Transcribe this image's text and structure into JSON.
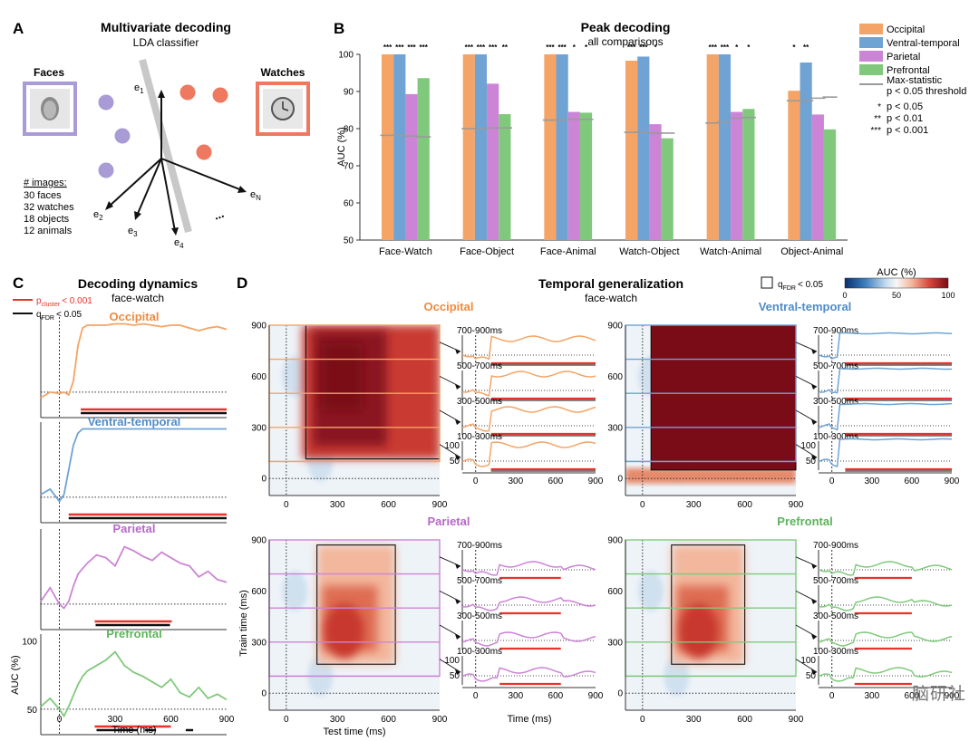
{
  "panel_a": {
    "letter": "A",
    "title": "Multivariate decoding",
    "subtitle": "LDA classifier",
    "left_label": "Faces",
    "right_label": "Watches",
    "axis_labels": [
      "e",
      "e",
      "e",
      "e",
      "e"
    ],
    "axis_subs": [
      "1",
      "2",
      "3",
      "4",
      "N"
    ],
    "ellipsis": "...",
    "images_header": "# images:",
    "images_lines": [
      "30 faces",
      "32 watches",
      "18 objects",
      "12 animals"
    ]
  },
  "panel_b": {
    "letter": "B",
    "title": "Peak decoding",
    "subtitle": "all comparisons",
    "legend": {
      "series": [
        "Occipital",
        "Ventral-temporal",
        "Parietal",
        "Prefrontal"
      ],
      "threshold_label_1": "Max-statistic",
      "threshold_label_2": "p < 0.05 threshold",
      "sig": [
        {
          "stars": "*",
          "label": "p < 0.05"
        },
        {
          "stars": "**",
          "label": "p < 0.01"
        },
        {
          "stars": "***",
          "label": "p < 0.001"
        }
      ]
    }
  },
  "panel_c": {
    "letter": "C",
    "title": "Decoding dynamics",
    "subtitle": "face-watch",
    "legend_red": "p",
    "legend_red_sub": "cluster",
    "legend_red_rest": "< 0.001",
    "legend_black": "q",
    "legend_black_sub": "FDR",
    "legend_black_rest": "< 0.05",
    "region_labels": [
      "Occipital",
      "Ventral-temporal",
      "Parietal",
      "Prefrontal"
    ],
    "y_label": "AUC (%)",
    "y_ticks": [
      "100",
      "50"
    ],
    "x_ticks": [
      "0",
      "300",
      "600",
      "900"
    ],
    "x_label": "Time (ms)"
  },
  "panel_d": {
    "letter": "D",
    "title": "Temporal generalization",
    "subtitle": "face-watch",
    "legend_q": "q",
    "legend_q_sub": "FDR",
    "legend_q_rest": "< 0.05",
    "colorbar_title": "AUC (%)",
    "colorbar_ticks": [
      "0",
      "50",
      "100"
    ],
    "region_labels": [
      "Occipital",
      "Ventral-temporal",
      "Parietal",
      "Prefrontal"
    ],
    "window_labels": [
      "700-900ms",
      "500-700ms",
      "300-500ms",
      "100-300ms"
    ],
    "heat_ticks": [
      "0",
      "300",
      "600",
      "900"
    ],
    "trace_y_ticks": [
      "100",
      "50"
    ],
    "trace_x_ticks": [
      "0",
      "300",
      "600",
      "900"
    ],
    "y_label": "Train time (ms)",
    "x_label": "Test time (ms)",
    "trace_x_label": "Time (ms)"
  },
  "watermark": "脑研社",
  "colors": {
    "occipital": "#f4a466",
    "ventral_temporal": "#6fa3d4",
    "parietal": "#cc84d6",
    "prefrontal": "#80c97c",
    "significance_red": "#e8332c",
    "title_occipital": "#f08a3e",
    "title_ventral": "#4f8cc9",
    "title_parietal": "#b868c9",
    "title_prefrontal": "#5cb45a"
  },
  "chart_data": [
    {
      "type": "bar",
      "title": "Peak decoding",
      "subtitle": "all comparisons",
      "ylabel": "AUC (%)",
      "ylim": [
        50,
        100
      ],
      "yticks": [
        50,
        60,
        70,
        80,
        90,
        100
      ],
      "grid": false,
      "legend_position": "top-right",
      "categories": [
        "Face-Watch",
        "Face-Object",
        "Face-Animal",
        "Watch-Object",
        "Watch-Animal",
        "Object-Animal"
      ],
      "series": [
        {
          "name": "Occipital",
          "values": [
            100,
            100,
            100,
            98.3,
            100,
            90.2
          ],
          "threshold": [
            78.2,
            80,
            82.3,
            79,
            81.5,
            87.5
          ],
          "significance": [
            "***",
            "***",
            "***",
            "***",
            "***",
            "*"
          ]
        },
        {
          "name": "Ventral-temporal",
          "values": [
            100,
            100,
            100,
            99.4,
            100,
            97.8
          ],
          "threshold": [
            78.2,
            80,
            82.3,
            79,
            81.8,
            87.5
          ],
          "significance": [
            "***",
            "***",
            "***",
            "***",
            "***",
            "**"
          ]
        },
        {
          "name": "Parietal",
          "values": [
            89.3,
            92.1,
            84.5,
            81.2,
            84.5,
            83.8
          ],
          "threshold": [
            78,
            80.2,
            82.5,
            78.8,
            82.8,
            88.2
          ],
          "significance": [
            "***",
            "***",
            "*",
            "*",
            "*",
            ""
          ]
        },
        {
          "name": "Prefrontal",
          "values": [
            93.6,
            83.9,
            84.3,
            77.4,
            85.3,
            79.8
          ],
          "threshold": [
            77.8,
            80.2,
            82.5,
            78.8,
            83,
            88.5
          ],
          "significance": [
            "***",
            "**",
            "*",
            "",
            "*",
            ""
          ]
        }
      ]
    },
    {
      "type": "line",
      "title": "Decoding dynamics",
      "subtitle": "face-watch",
      "xlabel": "Time (ms)",
      "ylabel": "AUC (%)",
      "xlim": [
        -100,
        900
      ],
      "ylim": [
        40,
        105
      ],
      "x": [
        -100,
        -50,
        0,
        25,
        50,
        75,
        100,
        125,
        150,
        200,
        250,
        300,
        350,
        400,
        450,
        500,
        550,
        600,
        650,
        700,
        750,
        800,
        850,
        900
      ],
      "series": [
        {
          "name": "Occipital",
          "values": [
            46,
            50,
            49,
            50,
            48,
            58,
            84,
            97,
            99,
            99,
            99,
            100,
            100,
            99,
            100,
            99,
            98,
            99,
            99,
            97,
            95,
            97,
            98,
            96
          ]
        },
        {
          "name": "Ventral-temporal",
          "values": [
            52,
            56,
            47,
            52,
            70,
            88,
            97,
            100,
            100,
            100,
            100,
            100,
            100,
            100,
            100,
            100,
            100,
            100,
            100,
            100,
            100,
            100,
            100,
            100
          ]
        },
        {
          "name": "Parietal",
          "values": [
            52,
            62,
            50,
            47,
            52,
            63,
            72,
            76,
            80,
            86,
            84,
            78,
            92,
            89,
            85,
            82,
            88,
            84,
            80,
            78,
            70,
            74,
            68,
            66
          ]
        },
        {
          "name": "Prefrontal",
          "values": [
            52,
            58,
            50,
            45,
            52,
            60,
            68,
            74,
            78,
            82,
            86,
            92,
            82,
            77,
            74,
            70,
            66,
            72,
            62,
            59,
            66,
            58,
            61,
            57
          ]
        }
      ],
      "chance_level": 50,
      "significant_windows": {
        "Occipital": {
          "p_cluster": [
            [
              115,
              900
            ]
          ],
          "q_fdr": [
            [
              115,
              900
            ]
          ]
        },
        "Ventral-temporal": {
          "p_cluster": [
            [
              50,
              900
            ]
          ],
          "q_fdr": [
            [
              50,
              900
            ]
          ]
        },
        "Parietal": {
          "p_cluster": [
            [
              190,
              605
            ]
          ],
          "q_fdr": [
            [
              195,
              595
            ]
          ]
        },
        "Prefrontal": {
          "p_cluster": [
            [
              190,
              600
            ]
          ],
          "q_fdr": [
            [
              200,
              420
            ],
            [
              460,
              520
            ],
            [
              680,
              720
            ]
          ]
        }
      }
    },
    {
      "type": "heatmap",
      "title": "Temporal generalization",
      "subtitle": "face-watch",
      "xlabel": "Test time (ms)",
      "ylabel": "Train time (ms)",
      "xlim": [
        -100,
        900
      ],
      "ylim": [
        -100,
        900
      ],
      "clim": [
        0,
        100
      ],
      "colorbar_label": "AUC (%)",
      "maps": [
        {
          "name": "Occipital",
          "peak_auc": 100,
          "significant_region": {
            "test_ms": [
              115,
              900
            ],
            "train_ms": [
              115,
              900
            ]
          }
        },
        {
          "name": "Ventral-temporal",
          "peak_auc": 100,
          "significant_region": {
            "test_ms": [
              50,
              900
            ],
            "train_ms": [
              50,
              900
            ]
          }
        },
        {
          "name": "Parietal",
          "peak_auc": 85,
          "significant_region": {
            "test_ms": [
              180,
              640
            ],
            "train_ms": [
              170,
              870
            ]
          }
        },
        {
          "name": "Prefrontal",
          "peak_auc": 85,
          "significant_region": {
            "test_ms": [
              170,
              600
            ],
            "train_ms": [
              170,
              870
            ]
          }
        }
      ],
      "train_windows_ms": [
        [
          700,
          900
        ],
        [
          500,
          700
        ],
        [
          300,
          500
        ],
        [
          100,
          300
        ]
      ]
    }
  ]
}
